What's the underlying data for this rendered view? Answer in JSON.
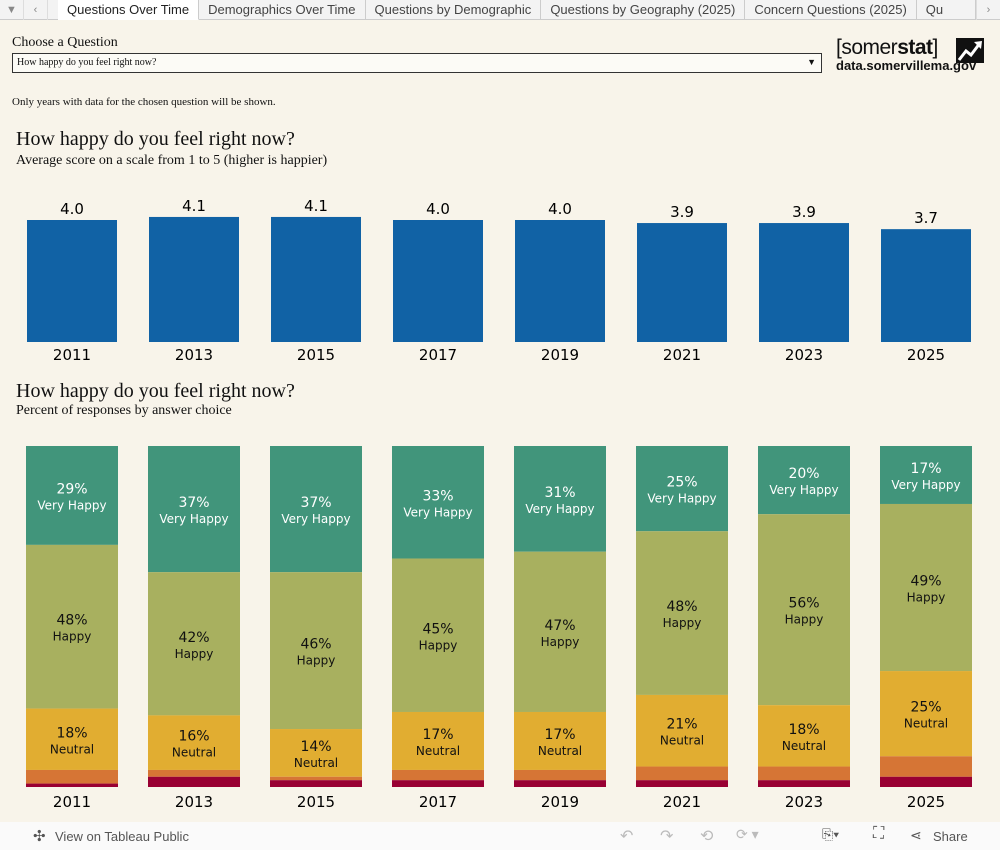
{
  "tabs": [
    "Questions Over Time",
    "Demographics Over Time",
    "Questions by Demographic",
    "Questions by Geography (2025)",
    "Concern Questions (2025)",
    "Qu"
  ],
  "filter": {
    "label": "Choose a Question",
    "value": "How happy do you feel right now?",
    "note": "Only years with data for the chosen question will be shown."
  },
  "logo": {
    "brand_light": "[somer",
    "brand_bold": "stat",
    "brand_end": "]",
    "url": "data.somervillema.gov"
  },
  "footer": {
    "view": "View on Tableau Public",
    "share": "Share"
  },
  "chart_data": [
    {
      "type": "bar",
      "title": "How happy do you feel right now?",
      "subtitle": "Average score on a scale from 1 to 5 (higher is happier)",
      "categories": [
        "2011",
        "2013",
        "2015",
        "2017",
        "2019",
        "2021",
        "2023",
        "2025"
      ],
      "values": [
        4.0,
        4.1,
        4.1,
        4.0,
        4.0,
        3.9,
        3.9,
        3.7
      ],
      "color": "#1162a5",
      "grid": false
    },
    {
      "type": "bar",
      "stacked": true,
      "title": "How happy do you feel right now?",
      "subtitle": "Percent of responses by answer choice",
      "categories": [
        "2011",
        "2013",
        "2015",
        "2017",
        "2019",
        "2021",
        "2023",
        "2025"
      ],
      "series": [
        {
          "name": "Very Happy",
          "color": "#41957b",
          "text_color": "#ffffff",
          "values": [
            29,
            37,
            37,
            33,
            31,
            25,
            20,
            17
          ]
        },
        {
          "name": "Happy",
          "color": "#a8b05f",
          "text_color": "#111111",
          "values": [
            48,
            42,
            46,
            45,
            47,
            48,
            56,
            49
          ]
        },
        {
          "name": "Neutral",
          "color": "#e1ad31",
          "text_color": "#111111",
          "values": [
            18,
            16,
            14,
            17,
            17,
            21,
            18,
            25
          ]
        },
        {
          "name": "",
          "color": "#d67535",
          "values": [
            4,
            2,
            1,
            3,
            3,
            4,
            4,
            6
          ]
        },
        {
          "name": "",
          "color": "#990033",
          "values": [
            1,
            3,
            2,
            2,
            2,
            2,
            2,
            3
          ]
        }
      ],
      "grid": false
    }
  ]
}
